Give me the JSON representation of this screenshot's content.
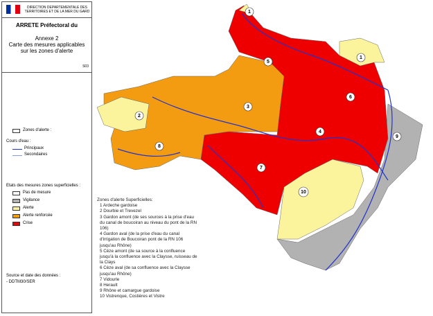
{
  "header": {
    "institution": "DIRECTION DEPARTEMENTALE DES TERRITOIRES ET DE LA MER DU GARD",
    "title": "ARRETE Préfectoral du",
    "annex": "Annexe 2",
    "subtitle": "Carte des mesures applicables sur les zones d'alerte",
    "code": "S03"
  },
  "legend": {
    "zones_label": "Zones d'alerte :",
    "rivers_title": "Cours d'eau :",
    "rivers": [
      "Principaux",
      "Secondaires"
    ],
    "states_title": "Etats des mesures zones superficielles :",
    "states": [
      {
        "label": "Pas de mesure",
        "color": "#ffffff"
      },
      {
        "label": "Vigilance",
        "color": "#b2b2b2"
      },
      {
        "label": "Alerte",
        "color": "#fbf49c"
      },
      {
        "label": "Alerte renforcée",
        "color": "#f39c12"
      },
      {
        "label": "Crise",
        "color": "#ee0000"
      }
    ],
    "source_title": "Source et date des données :",
    "source_value": "- DDTM30/SER"
  },
  "zones_list": {
    "title": "Zones d'alerte Superficielles:",
    "items": [
      "1 Ardeche gardoise",
      "2 Dourbie et Trevezel",
      "3 Gardon amont (de ses sources à la prise d'eau du canal de boucoiran au niveau du pont de la RN 106)",
      "4 Gardon aval (de la prise d'eau du canal d'irrigation de Boucoiran pont de la RN 106 jusqu'au Rhône)",
      "5 Cèze amont (de sa source à la confluence jusqu'à la confluence avec la Claysse, ruisseau de la Clays",
      "6 Cèze aval (de sa confluence avec la Claysse jusqu'au Rhône)",
      "7 Vidourle",
      "8 Herault",
      "9 Rhône et camargue gardoise",
      "10 Vistrenque, Costières et Vistre"
    ]
  },
  "map": {
    "zone_markers": [
      1,
      1,
      2,
      3,
      4,
      5,
      6,
      7,
      8,
      9,
      10
    ]
  }
}
